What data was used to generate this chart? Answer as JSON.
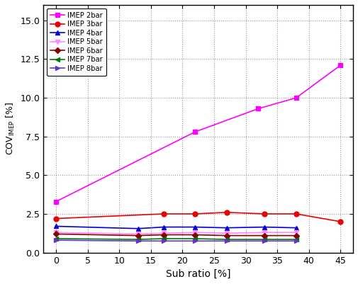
{
  "title": "",
  "xlabel": "Sub ratio [%]",
  "ylabel": "COV\\u2080 [%]",
  "xlim": [
    -2,
    47
  ],
  "ylim": [
    0,
    16.0
  ],
  "yticks": [
    0.0,
    2.5,
    5.0,
    7.5,
    10.0,
    12.5,
    15.0
  ],
  "xticks": [
    0,
    5,
    10,
    15,
    20,
    25,
    30,
    35,
    40,
    45
  ],
  "bg_color": "#FFFFFF",
  "grid_color": "#555555",
  "series": [
    {
      "label": "IMEP 2bar",
      "color": "#FF00FF",
      "marker": "s",
      "markersize": 5,
      "linewidth": 1.2,
      "x": [
        0,
        22,
        32,
        38,
        45
      ],
      "y": [
        3.3,
        7.8,
        9.3,
        10.0,
        12.1
      ]
    },
    {
      "label": "IMEP 3bar",
      "color": "#EE0000",
      "marker": "o",
      "markersize": 5,
      "linewidth": 1.2,
      "x": [
        0,
        17,
        22,
        27,
        33,
        38,
        45
      ],
      "y": [
        2.2,
        2.5,
        2.5,
        2.6,
        2.5,
        2.5,
        2.0
      ]
    },
    {
      "label": "IMEP 4bar",
      "color": "#0000DD",
      "marker": "^",
      "markersize": 5,
      "linewidth": 1.2,
      "x": [
        0,
        13,
        17,
        22,
        27,
        33,
        38
      ],
      "y": [
        1.7,
        1.55,
        1.65,
        1.65,
        1.6,
        1.65,
        1.6
      ]
    },
    {
      "label": "IMEP 5bar",
      "color": "#FF88FF",
      "marker": "v",
      "markersize": 5,
      "linewidth": 1.2,
      "x": [
        0,
        13,
        17,
        22,
        27,
        33,
        38
      ],
      "y": [
        1.3,
        1.2,
        1.25,
        1.3,
        1.25,
        1.3,
        1.3
      ]
    },
    {
      "label": "IMEP 6bar",
      "color": "#880000",
      "marker": "D",
      "markersize": 4,
      "linewidth": 1.2,
      "x": [
        0,
        13,
        17,
        22,
        27,
        33,
        38
      ],
      "y": [
        1.2,
        1.1,
        1.15,
        1.15,
        1.1,
        1.1,
        1.1
      ]
    },
    {
      "label": "IMEP 7bar",
      "color": "#007700",
      "marker": "<",
      "markersize": 5,
      "linewidth": 1.2,
      "x": [
        0,
        13,
        17,
        22,
        27,
        33,
        38
      ],
      "y": [
        0.9,
        0.85,
        0.9,
        0.9,
        0.85,
        0.85,
        0.85
      ]
    },
    {
      "label": "IMEP 8bar",
      "color": "#6633CC",
      "marker": ">",
      "markersize": 5,
      "linewidth": 1.2,
      "x": [
        0,
        13,
        17,
        22,
        27,
        33,
        38
      ],
      "y": [
        0.8,
        0.75,
        0.75,
        0.75,
        0.75,
        0.75,
        0.75
      ]
    }
  ]
}
